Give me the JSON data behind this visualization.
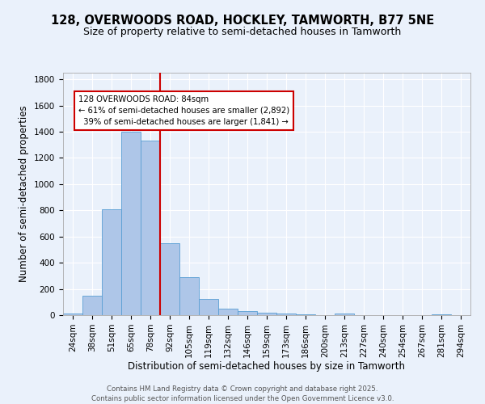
{
  "title1": "128, OVERWOODS ROAD, HOCKLEY, TAMWORTH, B77 5NE",
  "title2": "Size of property relative to semi-detached houses in Tamworth",
  "xlabel": "Distribution of semi-detached houses by size in Tamworth",
  "ylabel": "Number of semi-detached properties",
  "footer1": "Contains HM Land Registry data © Crown copyright and database right 2025.",
  "footer2": "Contains public sector information licensed under the Open Government Licence v3.0.",
  "categories": [
    "24sqm",
    "38sqm",
    "51sqm",
    "65sqm",
    "78sqm",
    "92sqm",
    "105sqm",
    "119sqm",
    "132sqm",
    "146sqm",
    "159sqm",
    "173sqm",
    "186sqm",
    "200sqm",
    "213sqm",
    "227sqm",
    "240sqm",
    "254sqm",
    "267sqm",
    "281sqm",
    "294sqm"
  ],
  "values": [
    15,
    150,
    805,
    1400,
    1330,
    550,
    290,
    125,
    52,
    30,
    18,
    10,
    5,
    0,
    10,
    0,
    0,
    0,
    0,
    8,
    0
  ],
  "bar_color": "#aec6e8",
  "bar_edge_color": "#5a9fd4",
  "property_label": "128 OVERWOODS ROAD: 84sqm",
  "pct_smaller": 61,
  "n_smaller": 2892,
  "pct_larger": 39,
  "n_larger": 1841,
  "vline_x_index": 4.5,
  "vline_color": "#cc0000",
  "annotation_box_color": "#cc0000",
  "ylim": [
    0,
    1850
  ],
  "yticks": [
    0,
    200,
    400,
    600,
    800,
    1000,
    1200,
    1400,
    1600,
    1800
  ],
  "bg_color": "#eaf1fb",
  "grid_color": "#ffffff",
  "title_fontsize": 10.5,
  "subtitle_fontsize": 9,
  "axis_fontsize": 8.5,
  "tick_fontsize": 7.5,
  "footer_fontsize": 6.2
}
